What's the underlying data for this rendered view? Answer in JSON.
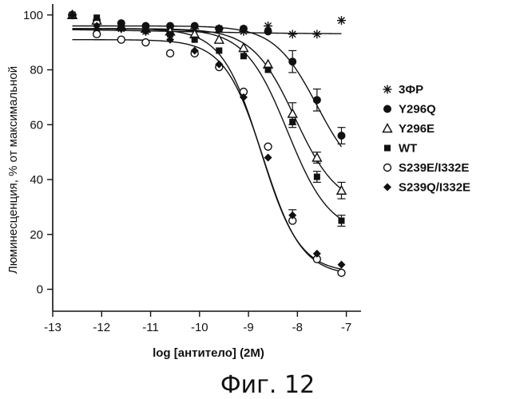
{
  "chart_data": {
    "type": "scatter",
    "xlabel": "log [антитело] (2M)",
    "ylabel": "Люминесценция, % от максимальной",
    "xlim": [
      -13,
      -6.7
    ],
    "ylim": [
      -8,
      104
    ],
    "xticks": [
      -13,
      -12,
      -11,
      -10,
      -9,
      -8,
      -7
    ],
    "yticks": [
      0,
      20,
      40,
      60,
      80,
      100
    ],
    "grid": false,
    "legend_position": "right",
    "caption": "Фиг. 12",
    "series": [
      {
        "name": "3ФР",
        "marker": "asterisk",
        "x": [
          -12.6,
          -12.1,
          -11.6,
          -11.1,
          -10.6,
          -10.1,
          -9.6,
          -9.1,
          -8.6,
          -8.1,
          -7.6,
          -7.1
        ],
        "y": [
          100,
          95,
          95,
          94,
          94,
          95,
          95,
          94,
          96,
          93,
          93,
          98
        ],
        "err": [
          0,
          2,
          0,
          0,
          0,
          0,
          0,
          0,
          0,
          0,
          0,
          0
        ],
        "fit": {
          "top": 95,
          "bottom": 93,
          "logEC50": -10.5,
          "hill": 0.3
        }
      },
      {
        "name": "Y296Q",
        "marker": "filled-circle",
        "x": [
          -12.6,
          -12.1,
          -11.6,
          -11.1,
          -10.6,
          -10.1,
          -9.6,
          -9.1,
          -8.6,
          -8.1,
          -7.6,
          -7.1
        ],
        "y": [
          100,
          98,
          97,
          96,
          96,
          96,
          95,
          95,
          94,
          83,
          69,
          56
        ],
        "err": [
          0,
          0,
          0,
          0,
          0,
          0,
          0,
          0,
          0,
          4,
          4,
          3
        ],
        "fit": {
          "top": 96,
          "bottom": 38,
          "logEC50": -7.6,
          "hill": 1.0
        }
      },
      {
        "name": "Y296E",
        "marker": "open-triangle",
        "x": [
          -12.6,
          -12.1,
          -11.6,
          -11.1,
          -10.6,
          -10.1,
          -9.6,
          -9.1,
          -8.6,
          -8.1,
          -7.6,
          -7.1
        ],
        "y": [
          100,
          98,
          96,
          95,
          94,
          93,
          91,
          88,
          82,
          64,
          48,
          36
        ],
        "err": [
          0,
          0,
          0,
          0,
          0,
          0,
          0,
          0,
          0,
          4,
          2,
          3
        ],
        "fit": {
          "top": 95,
          "bottom": 30,
          "logEC50": -8.05,
          "hill": 1.0
        }
      },
      {
        "name": "WT",
        "marker": "filled-square",
        "x": [
          -12.6,
          -12.1,
          -11.6,
          -11.1,
          -10.6,
          -10.1,
          -9.6,
          -9.1,
          -8.6,
          -8.1,
          -7.6,
          -7.1
        ],
        "y": [
          100,
          99,
          96,
          95,
          93,
          91,
          87,
          85,
          80,
          61,
          41,
          25
        ],
        "err": [
          0,
          0,
          0,
          0,
          0,
          0,
          0,
          0,
          0,
          2,
          2,
          2
        ],
        "fit": {
          "top": 95,
          "bottom": 20,
          "logEC50": -8.2,
          "hill": 1.0
        }
      },
      {
        "name": "S239E/I332E",
        "marker": "open-circle",
        "x": [
          -12.6,
          -12.1,
          -11.6,
          -11.1,
          -10.6,
          -10.1,
          -9.6,
          -9.1,
          -8.6,
          -8.1,
          -7.6,
          -7.1
        ],
        "y": [
          100,
          93,
          91,
          90,
          86,
          86,
          81,
          72,
          52,
          25,
          11,
          6
        ],
        "err": [
          0,
          0,
          0,
          0,
          0,
          0,
          0,
          0,
          0,
          0,
          0,
          0
        ],
        "fit": {
          "top": 91,
          "bottom": 5,
          "logEC50": -8.7,
          "hill": 1.1
        }
      },
      {
        "name": "S239Q/I332E",
        "marker": "filled-diamond",
        "x": [
          -12.6,
          -12.1,
          -11.6,
          -11.1,
          -10.6,
          -10.1,
          -9.6,
          -9.1,
          -8.6,
          -8.1,
          -7.6,
          -7.1
        ],
        "y": [
          100,
          96,
          95,
          94,
          91,
          87,
          82,
          70,
          48,
          27,
          13,
          9
        ],
        "err": [
          0,
          0,
          0,
          0,
          0,
          0,
          0,
          0,
          0,
          2,
          0,
          0
        ],
        "fit": {
          "top": 95,
          "bottom": 6,
          "logEC50": -8.75,
          "hill": 1.1
        }
      }
    ]
  }
}
